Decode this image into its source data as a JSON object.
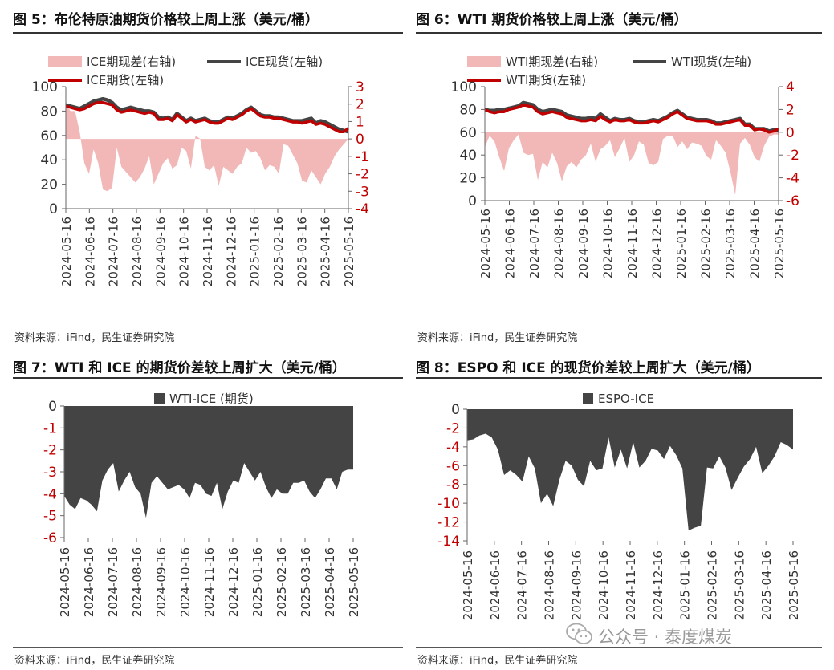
{
  "watermark": "公众号 · 泰度煤炭",
  "panels": [
    {
      "title": "图 5：布伦特原油期货价格较上周上涨（美元/桶）",
      "source": "资料来源：iFind，民生证券研究院",
      "chart_data": {
        "type": "area+line",
        "legend": [
          "ICE期现差(右轴)",
          "ICE现货(左轴)",
          "ICE期货(左轴)"
        ],
        "x_ticks": [
          "2024-05-16",
          "2024-06-16",
          "2024-07-16",
          "2024-08-16",
          "2024-09-16",
          "2024-10-16",
          "2024-11-16",
          "2024-12-16",
          "2025-01-16",
          "2025-02-16",
          "2025-03-16",
          "2025-04-16",
          "2025-05-16"
        ],
        "y_left": {
          "min": 0,
          "max": 100,
          "ticks": [
            0,
            20,
            40,
            60,
            80,
            100
          ]
        },
        "y_right": {
          "min": -4,
          "max": 3,
          "ticks": [
            -4,
            -3,
            -2,
            -1,
            0,
            1,
            2,
            3
          ]
        },
        "series": [
          {
            "name": "ICE期现差(右轴)",
            "type": "area",
            "axis": "right",
            "color": "#f2b8b8",
            "values": [
              2.0,
              1.6,
              1.6,
              0.4,
              -1.4,
              -2.0,
              -0.6,
              -1.4,
              -2.9,
              -3.0,
              -2.8,
              -0.5,
              -1.6,
              -1.9,
              -2.2,
              -2.5,
              -2.2,
              -1.7,
              -1.0,
              -2.6,
              -2.0,
              -1.4,
              -1.1,
              -1.7,
              -1.5,
              -0.5,
              -0.7,
              -1.7,
              0.2,
              0.0,
              -1.6,
              -1.8,
              -1.5,
              -2.7,
              -1.6,
              -1.8,
              -2.0,
              -1.6,
              -1.4,
              -0.5,
              -0.8,
              -0.7,
              -1.1,
              -1.8,
              -1.5,
              -1.6,
              -2.0,
              -0.3,
              -0.4,
              -0.9,
              -1.4,
              -2.4,
              -2.5,
              -1.8,
              -2.2,
              -2.6,
              -2.0,
              -1.6,
              -1.0,
              -0.6,
              -0.3,
              0.0
            ]
          },
          {
            "name": "ICE现货(左轴)",
            "type": "line",
            "axis": "left",
            "color": "#444444",
            "values": [
              85,
              84,
              83,
              82,
              84,
              86,
              88,
              89,
              90,
              89,
              87,
              83,
              81,
              82,
              83,
              82,
              81,
              80,
              80,
              79,
              75,
              74,
              75,
              73,
              78,
              75,
              72,
              74,
              72,
              73,
              74,
              72,
              71,
              71,
              73,
              75,
              74,
              76,
              78,
              81,
              83,
              80,
              77,
              76,
              76,
              75,
              75,
              74,
              73,
              72,
              72,
              72,
              73,
              74,
              70,
              72,
              71,
              69,
              67,
              65,
              64,
              63
            ]
          },
          {
            "name": "ICE期货(左轴)",
            "type": "line",
            "axis": "left",
            "color": "#c00000",
            "values": [
              84,
              83,
              82,
              81,
              82,
              84,
              86,
              87,
              87,
              86,
              85,
              81,
              79,
              80,
              81,
              80,
              79,
              78,
              79,
              78,
              73,
              73,
              74,
              72,
              77,
              74,
              71,
              73,
              71,
              72,
              73,
              71,
              70,
              70,
              72,
              74,
              73,
              75,
              77,
              80,
              82,
              79,
              76,
              75,
              75,
              74,
              74,
              73,
              72,
              71,
              71,
              70,
              71,
              72,
              69,
              70,
              69,
              67,
              65,
              63,
              63,
              66
            ]
          }
        ]
      }
    },
    {
      "title": "图 6：WTI 期货价格较上周上涨（美元/桶）",
      "source": "资料来源：iFind，民生证券研究院",
      "chart_data": {
        "type": "area+line",
        "legend": [
          "WTI期现差(右轴)",
          "WTI现货(左轴)",
          "WTI期货(左轴)"
        ],
        "x_ticks": [
          "2024-05-16",
          "2024-06-16",
          "2024-07-16",
          "2024-08-16",
          "2024-09-16",
          "2024-10-16",
          "2024-11-16",
          "2024-12-16",
          "2025-01-16",
          "2025-02-16",
          "2025-03-16",
          "2025-04-16",
          "2025-05-16"
        ],
        "y_left": {
          "min": 0,
          "max": 100,
          "ticks": [
            0,
            20,
            40,
            60,
            80,
            100
          ]
        },
        "y_right": {
          "min": -6,
          "max": 4,
          "ticks": [
            -6,
            -4,
            -2,
            0,
            2,
            4
          ]
        },
        "series": [
          {
            "name": "WTI期现差(右轴)",
            "type": "area",
            "axis": "right",
            "color": "#f2b8b8",
            "values": [
              -1.3,
              -0.3,
              -0.8,
              -2.2,
              -3.4,
              -1.4,
              -0.7,
              -0.2,
              -1.8,
              -2.0,
              -1.9,
              -4.2,
              -2.6,
              -3.1,
              -1.8,
              -2.7,
              -4.3,
              -3.0,
              -2.6,
              -3.1,
              -2.4,
              -2.0,
              -1.0,
              -2.6,
              -1.5,
              -1.2,
              -0.7,
              -2.2,
              -1.4,
              -0.5,
              -2.6,
              -2.0,
              -0.8,
              -1.1,
              -2.7,
              -2.9,
              -2.6,
              -0.6,
              -0.3,
              -0.3,
              -1.3,
              -0.8,
              -1.5,
              -0.9,
              -1.0,
              -1.2,
              -2.1,
              -2.4,
              -0.7,
              -1.2,
              -1.8,
              -3.5,
              -5.5,
              -1.0,
              -0.5,
              -1.1,
              -2.2,
              -2.6,
              -1.2,
              -0.4,
              -0.2,
              -0.2
            ]
          },
          {
            "name": "WTI现货(左轴)",
            "type": "line",
            "axis": "left",
            "color": "#444444",
            "values": [
              80,
              79,
              79,
              80,
              80,
              81,
              82,
              83,
              86,
              85,
              84,
              80,
              78,
              79,
              80,
              79,
              78,
              75,
              74,
              73,
              72,
              72,
              73,
              72,
              76,
              73,
              70,
              72,
              71,
              71,
              72,
              70,
              69,
              69,
              70,
              71,
              70,
              72,
              74,
              77,
              79,
              76,
              73,
              72,
              71,
              71,
              71,
              70,
              68,
              68,
              69,
              70,
              71,
              72,
              67,
              67,
              63,
              63,
              63,
              61,
              62,
              62
            ]
          },
          {
            "name": "WTI期货(左轴)",
            "type": "line",
            "axis": "left",
            "color": "#c00000",
            "values": [
              80,
              78,
              77,
              78,
              78,
              80,
              81,
              82,
              84,
              83,
              82,
              78,
              76,
              77,
              78,
              77,
              76,
              73,
              72,
              71,
              70,
              70,
              71,
              70,
              74,
              71,
              69,
              71,
              70,
              70,
              71,
              69,
              68,
              68,
              69,
              70,
              69,
              71,
              73,
              76,
              78,
              75,
              72,
              71,
              70,
              70,
              70,
              69,
              67,
              67,
              68,
              69,
              70,
              71,
              66,
              66,
              62,
              63,
              62,
              60,
              61,
              63
            ]
          }
        ]
      }
    },
    {
      "title": "图 7：WTI 和 ICE 的期货价差较上周扩大（美元/桶）",
      "source": "资料来源：iFind，民生证券研究院",
      "chart_data": {
        "type": "area",
        "legend": [
          "WTI-ICE (期货)"
        ],
        "x_ticks": [
          "2024-05-16",
          "2024-06-16",
          "2024-07-16",
          "2024-08-16",
          "2024-09-16",
          "2024-10-16",
          "2024-11-16",
          "2024-12-16",
          "2025-01-16",
          "2025-02-16",
          "2025-03-16",
          "2025-04-16",
          "2025-05-16"
        ],
        "y": {
          "min": -6,
          "max": 0,
          "ticks": [
            -6,
            -5,
            -4,
            -3,
            -2,
            -1,
            0
          ]
        },
        "series": [
          {
            "name": "WTI-ICE (期货)",
            "type": "area",
            "color": "#444444",
            "values": [
              -4.1,
              -4.5,
              -4.7,
              -4.2,
              -4.3,
              -4.5,
              -4.8,
              -3.4,
              -2.9,
              -2.6,
              -3.9,
              -3.4,
              -3.0,
              -3.7,
              -4.0,
              -5.1,
              -3.5,
              -3.2,
              -3.5,
              -3.8,
              -3.7,
              -3.6,
              -3.8,
              -4.2,
              -3.5,
              -3.6,
              -4.0,
              -4.1,
              -3.5,
              -4.7,
              -3.9,
              -3.4,
              -3.5,
              -2.6,
              -3.0,
              -3.4,
              -3.0,
              -3.7,
              -4.2,
              -3.8,
              -4.0,
              -4.0,
              -3.5,
              -3.5,
              -3.4,
              -3.9,
              -4.2,
              -3.8,
              -3.3,
              -3.3,
              -3.8,
              -3.0,
              -2.9,
              -2.9
            ]
          }
        ]
      }
    },
    {
      "title": "图 8：ESPO 和 ICE 的现货价差较上周扩大（美元/桶）",
      "source": "资料来源：iFind，民生证券研究院",
      "chart_data": {
        "type": "area",
        "legend": [
          "ESPO-ICE"
        ],
        "x_ticks": [
          "2024-05-16",
          "2024-06-16",
          "2024-07-16",
          "2024-08-16",
          "2024-09-16",
          "2024-10-16",
          "2024-11-16",
          "2024-12-16",
          "2025-01-16",
          "2025-02-16",
          "2025-03-16",
          "2025-04-16",
          "2025-05-16"
        ],
        "y": {
          "min": -14,
          "max": 0,
          "ticks": [
            -14,
            -12,
            -10,
            -8,
            -6,
            -4,
            -2,
            0
          ]
        },
        "series": [
          {
            "name": "ESPO-ICE",
            "type": "area",
            "color": "#444444",
            "values": [
              -3.3,
              -3.2,
              -2.8,
              -2.6,
              -3.0,
              -4.3,
              -7.0,
              -6.5,
              -7.0,
              -7.7,
              -5.0,
              -6.3,
              -10.0,
              -9.0,
              -10.3,
              -7.5,
              -5.5,
              -6.0,
              -7.5,
              -8.2,
              -5.5,
              -6.5,
              -6.3,
              -3.0,
              -6.2,
              -4.3,
              -6.3,
              -3.5,
              -6.2,
              -5.5,
              -4.2,
              -4.4,
              -5.3,
              -3.9,
              -4.9,
              -6.3,
              -12.9,
              -12.6,
              -12.4,
              -6.2,
              -6.3,
              -5.0,
              -6.2,
              -8.6,
              -7.3,
              -6.1,
              -5.3,
              -4.0,
              -6.8,
              -6.0,
              -5.0,
              -3.5,
              -3.8,
              -4.3
            ]
          }
        ]
      }
    }
  ]
}
